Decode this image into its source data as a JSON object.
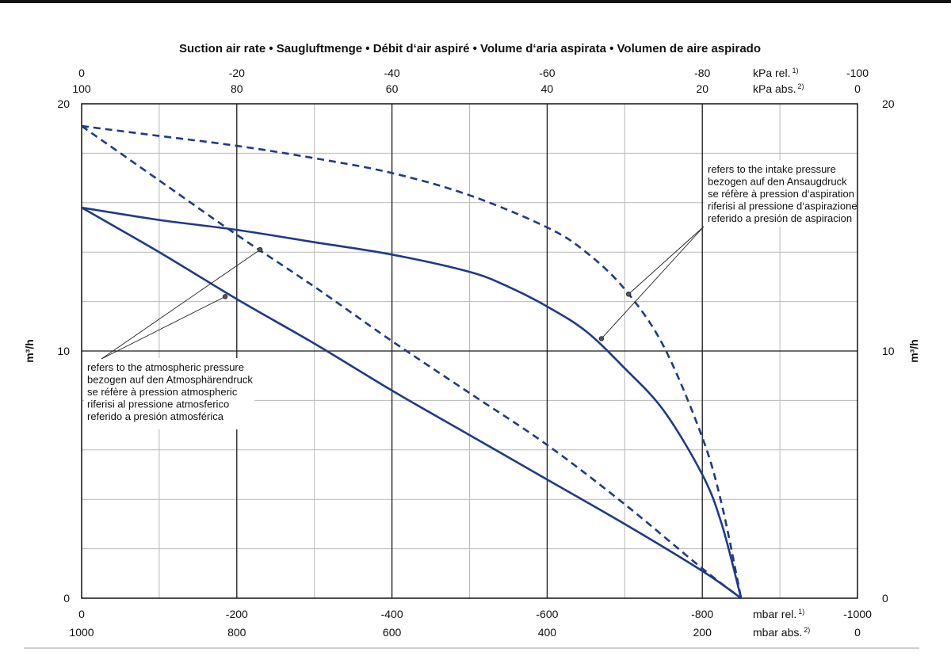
{
  "chart_data": {
    "type": "line",
    "title": "Suction air rate  •  Saugluftmenge  •  Débit d‘air aspiré  •  Volume d‘aria aspirata  •  Volumen de aire aspirado",
    "ylabel_left": "m³/h",
    "ylabel_right": "m³/h",
    "grid": true,
    "xlim": [
      0,
      -1000
    ],
    "ylim": [
      0,
      20
    ],
    "axes": {
      "bottom_rel": {
        "ticks": [
          0,
          -200,
          -400,
          -600,
          -800,
          -1000
        ],
        "labels": [
          "0",
          "-200",
          "-400",
          "-600",
          "-800",
          "-1000"
        ],
        "unit": "mbar rel.",
        "unit_sup": "1)"
      },
      "bottom_abs": {
        "labels": [
          "1000",
          "800",
          "600",
          "400",
          "200",
          "0"
        ],
        "unit": "mbar abs.",
        "unit_sup": "2)"
      },
      "top_rel": {
        "labels": [
          "0",
          "-20",
          "-40",
          "-60",
          "-80",
          "-100"
        ],
        "unit": "kPa rel.",
        "unit_sup": "1)"
      },
      "top_abs": {
        "labels": [
          "100",
          "80",
          "60",
          "40",
          "20",
          "0"
        ],
        "unit": "kPa abs.",
        "unit_sup": "2)"
      },
      "left": {
        "ticks": [
          0,
          10,
          20
        ],
        "labels": [
          "0",
          "10",
          "20"
        ]
      },
      "right": {
        "ticks": [
          0,
          10,
          20
        ],
        "labels": [
          "0",
          "10",
          "20"
        ]
      }
    },
    "series": [
      {
        "style": "solid",
        "reference": "atmospheric",
        "x": [
          0,
          -100,
          -200,
          -300,
          -400,
          -500,
          -600,
          -700,
          -800,
          -850
        ],
        "y": [
          15.8,
          14.0,
          12.1,
          10.3,
          8.4,
          6.6,
          4.8,
          3.0,
          1.1,
          0
        ]
      },
      {
        "style": "dashed",
        "reference": "atmospheric",
        "x": [
          0,
          -100,
          -200,
          -300,
          -400,
          -500,
          -600,
          -700,
          -800,
          -850
        ],
        "y": [
          19.1,
          16.9,
          14.7,
          12.6,
          10.4,
          8.3,
          6.2,
          3.8,
          1.2,
          0
        ]
      },
      {
        "style": "solid",
        "reference": "intake",
        "x": [
          0,
          -100,
          -200,
          -300,
          -400,
          -500,
          -550,
          -600,
          -650,
          -700,
          -750,
          -800,
          -825,
          -850
        ],
        "y": [
          15.8,
          15.3,
          14.9,
          14.4,
          13.9,
          13.2,
          12.6,
          11.8,
          10.8,
          9.3,
          7.6,
          5.0,
          3.0,
          0
        ]
      },
      {
        "style": "dashed",
        "reference": "intake",
        "x": [
          0,
          -100,
          -200,
          -300,
          -400,
          -500,
          -600,
          -650,
          -700,
          -750,
          -800,
          -825,
          -850
        ],
        "y": [
          19.1,
          18.7,
          18.3,
          17.8,
          17.2,
          16.3,
          15.0,
          14.0,
          12.5,
          10.2,
          6.5,
          3.8,
          0
        ]
      }
    ],
    "annotations": [
      {
        "lines": [
          "refers to the atmospheric pressure",
          "bezogen auf den Atmosphärendruck",
          "se réfère à pression atmospheric",
          "riferisi al pressione atmosferico",
          "referido a presión atmosférica"
        ],
        "points": [
          [
            -185,
            12.2
          ],
          [
            -230,
            14.1
          ]
        ]
      },
      {
        "lines": [
          "refers to the intake pressure",
          "bezogen auf den Ansaugdruck",
          "se réfère à pression d‘aspiration",
          "riferisi al pressione d‘aspirazione",
          "referido a presión de aspiracion"
        ],
        "points": [
          [
            -670,
            10.5
          ],
          [
            -705,
            12.3
          ]
        ]
      }
    ],
    "colors": {
      "series": "#1e3a8a",
      "grid_major": "#1a1a1a",
      "grid_minor": "#b8b8b8"
    }
  }
}
